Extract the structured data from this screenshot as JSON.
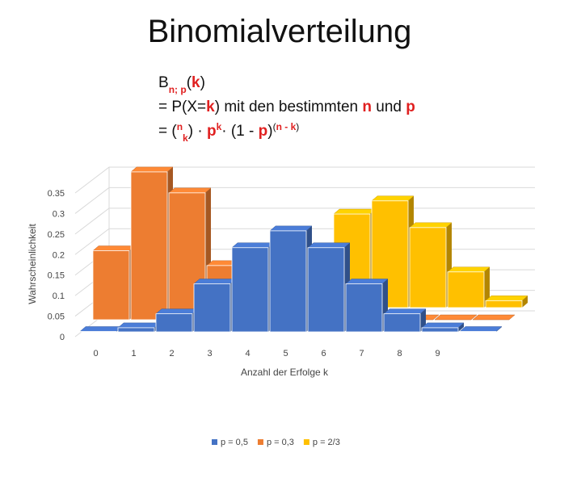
{
  "chart_data": {
    "type": "bar3d",
    "title": "Binomialverteilung",
    "formula": [
      [
        {
          "text": "B"
        },
        {
          "text": "n; p",
          "color": "#e02020",
          "shift": "sub"
        },
        {
          "text": "("
        },
        {
          "text": "k",
          "color": "#e02020"
        },
        {
          "text": ")"
        }
      ],
      [
        {
          "text": "= P(X="
        },
        {
          "text": "k",
          "color": "#e02020"
        },
        {
          "text": ") mit den bestimmten "
        },
        {
          "text": "n",
          "color": "#e02020"
        },
        {
          "text": " und "
        },
        {
          "text": "p",
          "color": "#e02020"
        }
      ],
      [
        {
          "text": "= ("
        },
        {
          "text": "n",
          "color": "#e02020",
          "shift": "sup"
        },
        {
          "text": "k",
          "color": "#e02020",
          "shift": "sub"
        },
        {
          "text": ") · "
        },
        {
          "text": "p",
          "color": "#e02020"
        },
        {
          "text": "k",
          "color": "#e02020",
          "shift": "sup"
        },
        {
          "text": "· (1 - "
        },
        {
          "text": "p",
          "color": "#e02020"
        },
        {
          "text": ")"
        },
        {
          "text": "(",
          "shift": "sup"
        },
        {
          "text": "n - k",
          "color": "#e02020",
          "shift": "sup"
        },
        {
          "text": ")",
          "shift": "sup"
        }
      ]
    ],
    "x_label": "Anzahl der Erfolge k",
    "y_label": "Wahrscheinlichkeit",
    "categories": [
      "0",
      "1",
      "2",
      "3",
      "4",
      "5",
      "6",
      "7",
      "8",
      "9",
      null
    ],
    "series": [
      {
        "name": "p = 0,5",
        "color": "#4472c4",
        "values": [
          0.001,
          0.01,
          0.044,
          0.117,
          0.205,
          0.246,
          0.205,
          0.117,
          0.044,
          0.01,
          0.001
        ]
      },
      {
        "name": "p = 0,3",
        "color": "#ed7d31",
        "values": [
          0.168,
          0.36,
          0.309,
          0.132,
          0.028,
          0.002,
          0,
          0,
          0,
          0,
          0
        ]
      },
      {
        "name": "p = 2/3",
        "color": "#ffc000",
        "values": [
          0,
          0,
          0.003,
          0.016,
          0.057,
          0.137,
          0.228,
          0.26,
          0.195,
          0.087,
          0.017
        ]
      }
    ],
    "ylim": [
      0,
      0.35
    ],
    "yticks": [
      0,
      0.05,
      0.1,
      0.15,
      0.2,
      0.25,
      0.3,
      0.35
    ],
    "grid": true,
    "legend": "bottom"
  }
}
